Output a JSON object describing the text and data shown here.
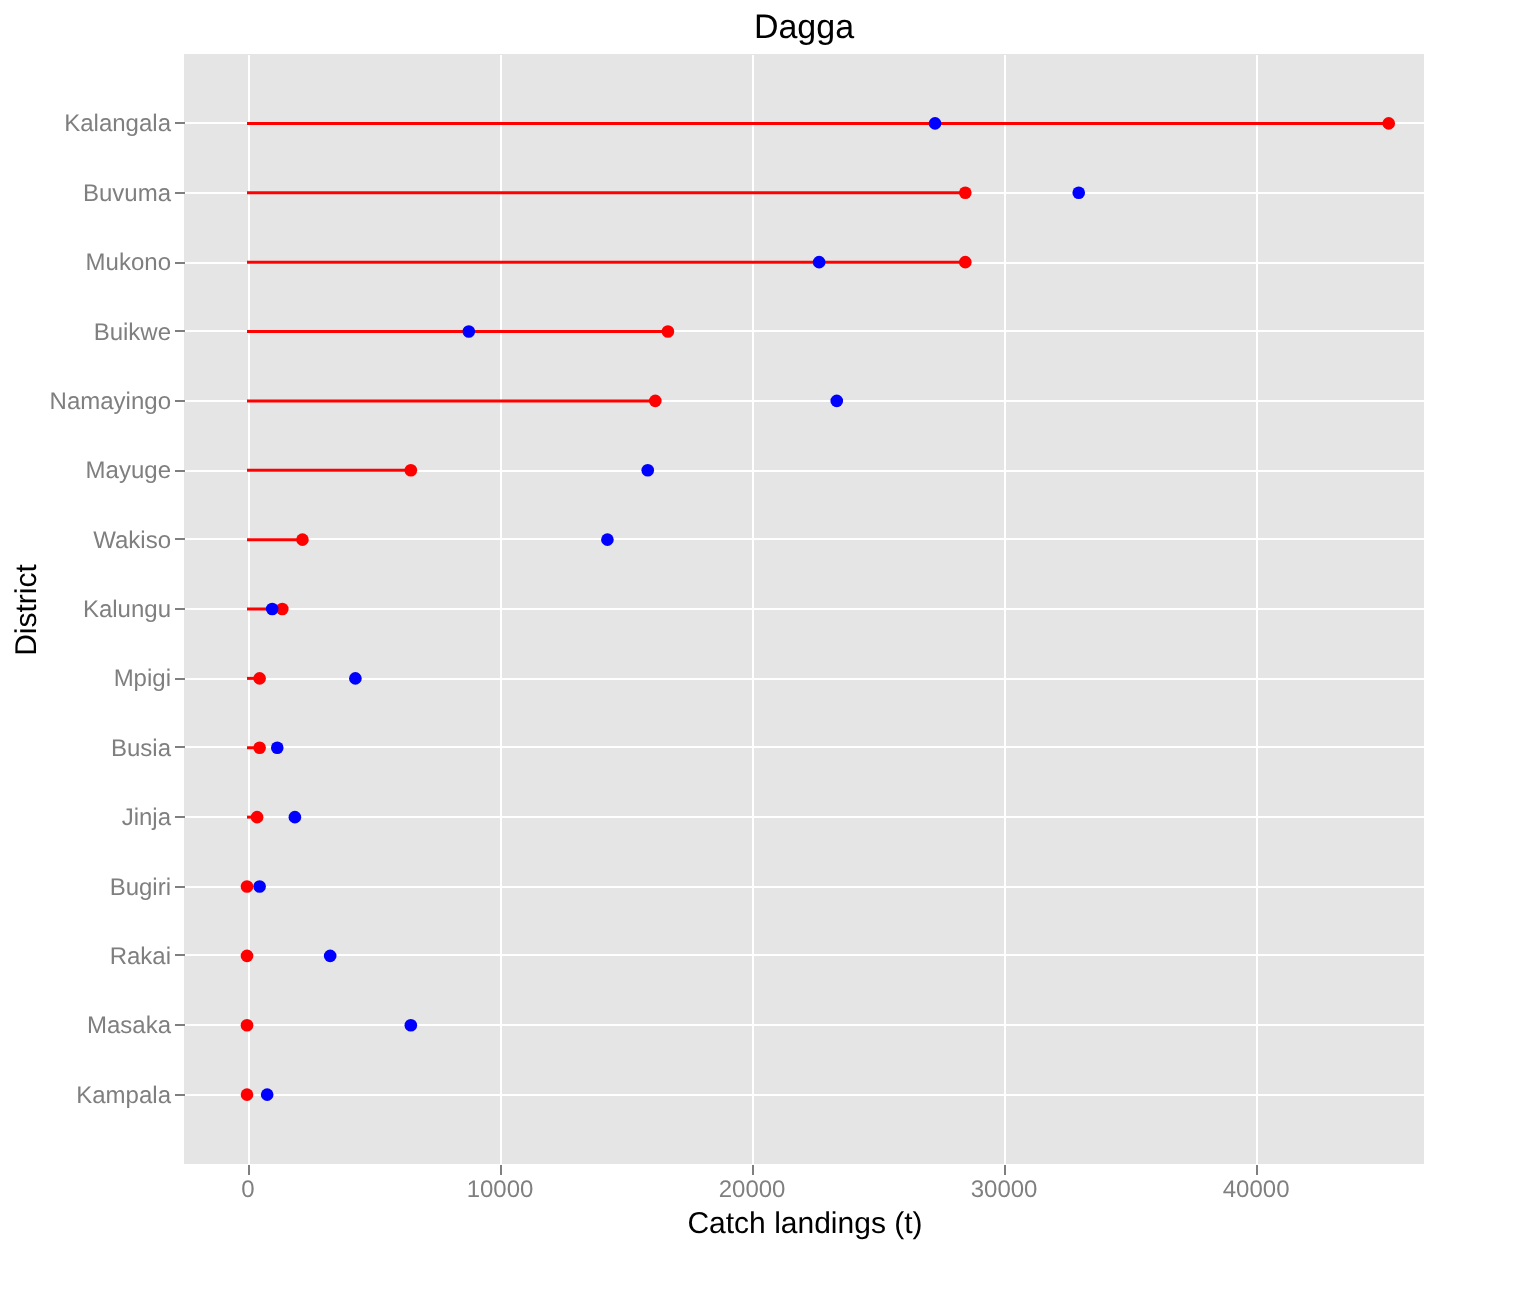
{
  "chart_data": {
    "type": "lollipop",
    "title": "Dagga",
    "xlabel": "Catch landings (t)",
    "ylabel": "District",
    "orientation": "horizontal",
    "categories": [
      "Kalangala",
      "Buvuma",
      "Mukono",
      "Buikwe",
      "Namayingo",
      "Mayuge",
      "Wakiso",
      "Kalungu",
      "Mpigi",
      "Busia",
      "Jinja",
      "Bugiri",
      "Rakai",
      "Masaka",
      "Kampala"
    ],
    "series": [
      {
        "color": "#ff0000",
        "values": [
          45300,
          28500,
          28500,
          16700,
          16200,
          6500,
          2200,
          1400,
          500,
          500,
          400,
          0,
          0,
          0,
          0
        ]
      },
      {
        "type": "scatter",
        "color": "#0000ff",
        "values": [
          27300,
          33000,
          22700,
          8800,
          23400,
          15900,
          14300,
          1000,
          4300,
          1200,
          1900,
          500,
          3300,
          6500,
          800
        ]
      }
    ],
    "xlim": [
      -2500,
      46700
    ],
    "xticks": [
      0,
      10000,
      20000,
      30000,
      40000
    ],
    "grid": true,
    "marker": "circle",
    "legend": false
  }
}
